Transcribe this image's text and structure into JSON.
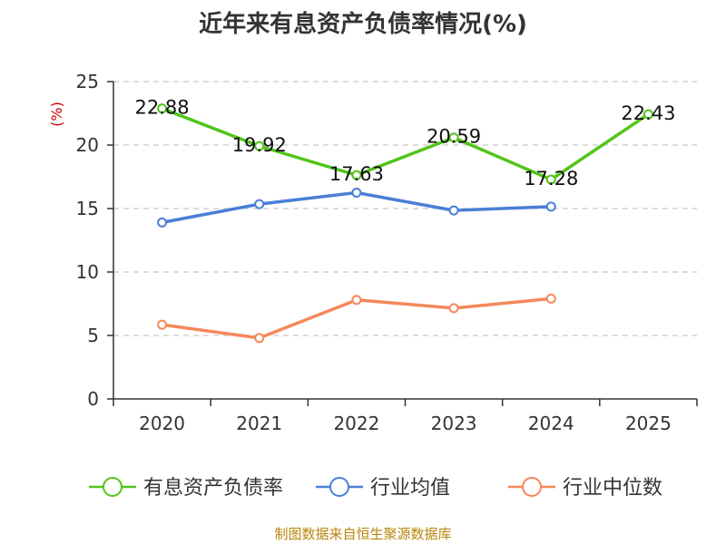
{
  "chart_data": {
    "type": "line",
    "title": "近年来有息资产负债率情况(%)",
    "ylabel": "(%)",
    "xlabel": "",
    "x": [
      "2020",
      "2021",
      "2022",
      "2023",
      "2024",
      "2025"
    ],
    "ylim": [
      0,
      25
    ],
    "yticks": [
      0,
      5,
      10,
      15,
      20,
      25
    ],
    "grid": true,
    "legend_position": "bottom",
    "series": [
      {
        "name": "有息资产负债率",
        "color": "#52c41a",
        "values": [
          22.88,
          19.92,
          17.63,
          20.59,
          17.28,
          22.43
        ],
        "labels": [
          "22.88",
          "19.92",
          "17.63",
          "20.59",
          "17.28",
          "22.43"
        ]
      },
      {
        "name": "行业均值",
        "color": "#4a7fd6",
        "values": [
          13.9,
          15.35,
          16.25,
          14.85,
          15.15,
          null
        ]
      },
      {
        "name": "行业中位数",
        "color": "#f5885a",
        "values": [
          5.85,
          4.8,
          7.8,
          7.15,
          7.9,
          null
        ]
      }
    ]
  },
  "footer": {
    "source": "制图数据来自恒生聚源数据库"
  }
}
